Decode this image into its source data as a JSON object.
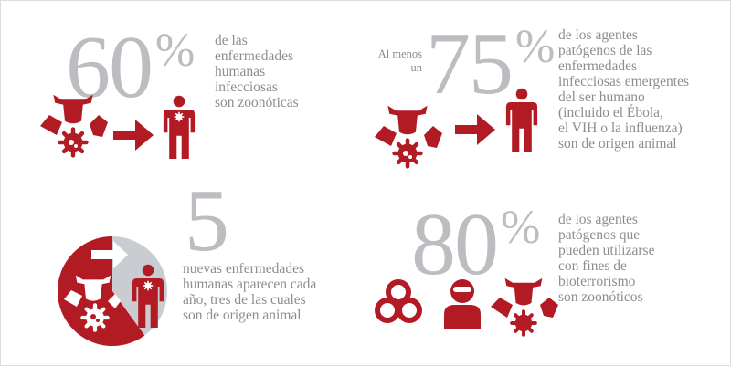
{
  "colors": {
    "accent": "#b31b24",
    "stat_gray": "#bcbdc1",
    "text_gray": "#8c8d92",
    "circle_gray": "#c9ccd0"
  },
  "stats": [
    {
      "number": "60",
      "suffix": "%",
      "prefix": "",
      "description": "de las\nenfermedades\nhumanas\ninfecciosas\nson zoonóticas",
      "icons": [
        "animals-icon",
        "arrow-right-icon",
        "infected-person-icon"
      ]
    },
    {
      "number": "75",
      "suffix": "%",
      "prefix": "Al menos\nun",
      "description": "de los agentes\npatógenos de las\nenfermedades\ninfecciosas emergentes\ndel ser humano\n(incluido el Ébola,\nel VIH o la influenza)\nson de origen animal",
      "icons": [
        "animals-icon",
        "arrow-right-icon",
        "person-icon"
      ]
    },
    {
      "number": "5",
      "suffix": "",
      "prefix": "",
      "description": "nuevas enfermedades\nhumanas aparecen cada\naño, tres de las cuales\nson de origen animal",
      "icons": [
        "pie-animals-to-person-icon"
      ],
      "animal_share": 0.6
    },
    {
      "number": "80",
      "suffix": "%",
      "prefix": "",
      "description": "de los agentes\npatógenos que\npueden utilizarse\ncon fines de\nbioterrorismo\nson zoonóticos",
      "icons": [
        "biohazard-icon",
        "masked-person-icon",
        "animals-icon"
      ]
    }
  ]
}
